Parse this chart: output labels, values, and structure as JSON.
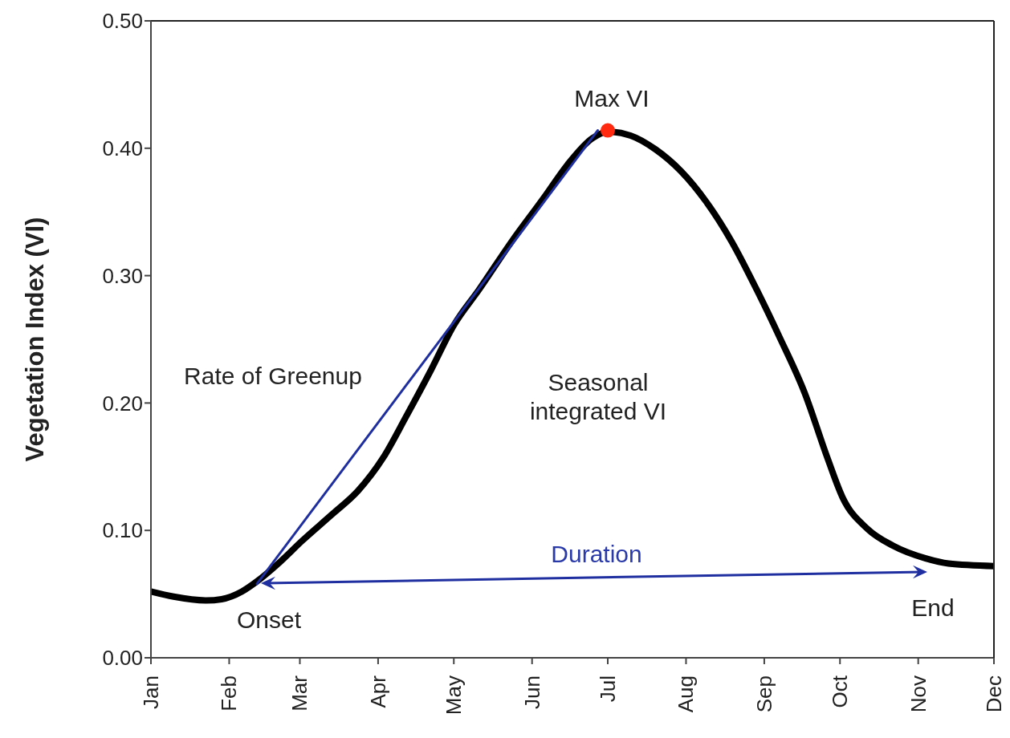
{
  "chart_data": {
    "type": "line",
    "ylabel": "Vegetation Index (VI)",
    "xlim": [
      "--01-01",
      "--12-01"
    ],
    "xticks": [
      {
        "value": "--01-01",
        "label": "Jan"
      },
      {
        "value": "--02-01",
        "label": "Feb"
      },
      {
        "value": "--03-01",
        "label": "Mar"
      },
      {
        "value": "--04-01",
        "label": "Apr"
      },
      {
        "value": "--05-01",
        "label": "May"
      },
      {
        "value": "--06-01",
        "label": "Jun"
      },
      {
        "value": "--07-01",
        "label": "Jul"
      },
      {
        "value": "--08-01",
        "label": "Aug"
      },
      {
        "value": "--09-01",
        "label": "Sep"
      },
      {
        "value": "--10-01",
        "label": "Oct"
      },
      {
        "value": "--11-01",
        "label": "Nov"
      },
      {
        "value": "--12-01",
        "label": "Dec"
      }
    ],
    "ylim": [
      0,
      0.5
    ],
    "yticks": [
      {
        "value": 0,
        "label": "0.00"
      },
      {
        "value": 0.1,
        "label": "0.10"
      },
      {
        "value": 0.2,
        "label": "0.20"
      },
      {
        "value": 0.3,
        "label": "0.30"
      },
      {
        "value": 0.4,
        "label": "0.40"
      },
      {
        "value": 0.5,
        "label": "0.50"
      }
    ],
    "grid": false,
    "series": [
      {
        "color": "#000000",
        "x": [
          "--01-01",
          "--01-10",
          "--01-23",
          "--01-29",
          "--02-06",
          "--02-12",
          "--02-21",
          "--03-02",
          "--03-14",
          "--03-24",
          "--04-03",
          "--04-12",
          "--04-22",
          "--05-01",
          "--05-11",
          "--05-24",
          "--06-06",
          "--06-15",
          "--06-25",
          "--07-01",
          "--07-10",
          "--07-20",
          "--07-30",
          "--08-09",
          "--08-19",
          "--08-29",
          "--09-07",
          "--09-17",
          "--09-26",
          "--10-02",
          "--10-12",
          "--10-22",
          "--11-04",
          "--11-13",
          "--12-01"
        ],
        "values": [
          0.052,
          0.048,
          0.045,
          0.046,
          0.052,
          0.06,
          0.075,
          0.092,
          0.113,
          0.131,
          0.157,
          0.189,
          0.226,
          0.261,
          0.289,
          0.327,
          0.362,
          0.387,
          0.408,
          0.413,
          0.41,
          0.399,
          0.382,
          0.358,
          0.327,
          0.289,
          0.252,
          0.208,
          0.157,
          0.126,
          0.101,
          0.088,
          0.078,
          0.074,
          0.072
        ]
      },
      {
        "color": "#1f2fa0",
        "x": [
          "--02-12",
          "--06-27"
        ],
        "values": [
          0.058,
          0.414
        ]
      },
      {
        "type": "scatter",
        "color": "#ff2a10",
        "x": [
          "--07-01"
        ],
        "values": [
          0.414
        ]
      }
    ],
    "annotations": [
      "Max VI",
      "Rate of Greenup",
      "Seasonal\nintegrated VI",
      "Duration",
      "Onset",
      "End"
    ]
  }
}
